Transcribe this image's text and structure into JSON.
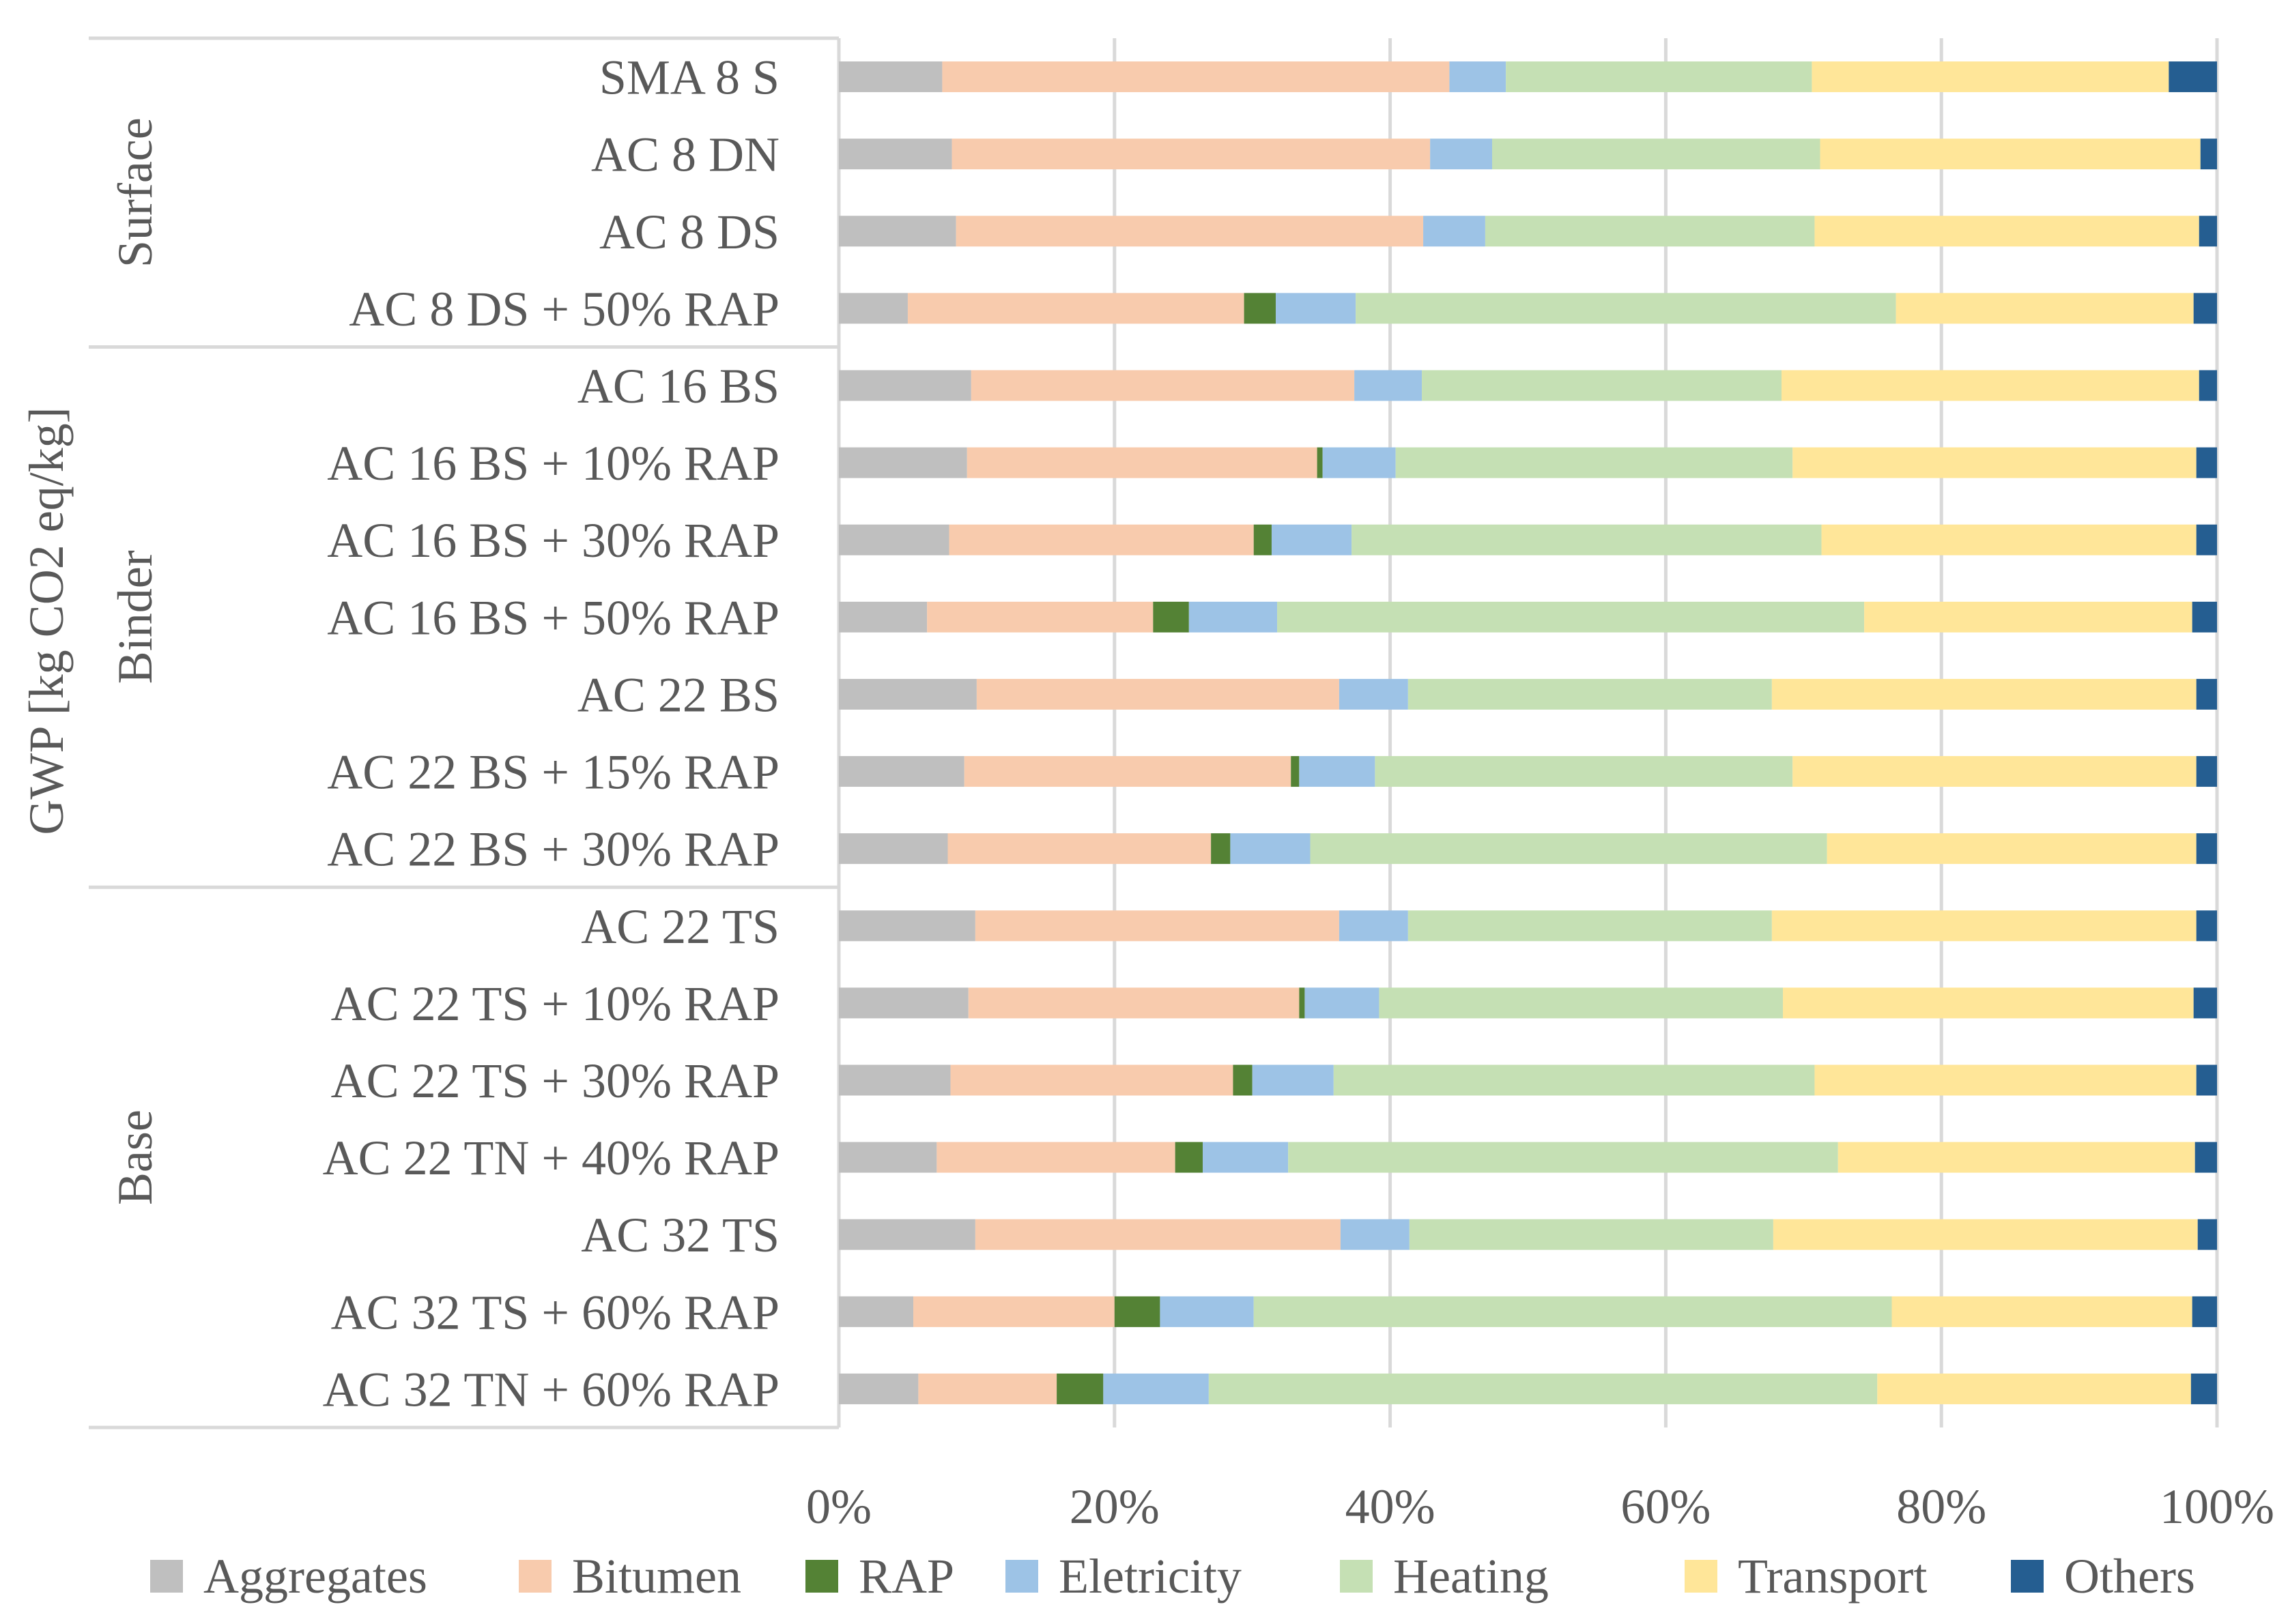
{
  "chart_data": {
    "type": "bar",
    "orientation": "horizontal",
    "stacked": true,
    "normalized": "percent",
    "title": "",
    "ylabel": "GWP [kg CO2 eq/kg]",
    "xlabel": "",
    "xlim": [
      0,
      100
    ],
    "x_ticks": [
      0,
      20,
      40,
      60,
      80,
      100
    ],
    "x_tick_labels": [
      "0%",
      "20%",
      "40%",
      "60%",
      "80%",
      "100%"
    ],
    "grid": true,
    "legend_position": "bottom",
    "categories": [
      "SMA 8 S",
      "AC 8 DN",
      "AC 8 DS",
      "AC 8 DS + 50% RAP",
      "AC 16 BS",
      "AC 16 BS + 10% RAP",
      "AC 16 BS + 30% RAP",
      "AC 16 BS + 50% RAP",
      "AC 22 BS",
      "AC 22 BS + 15% RAP",
      "AC 22 BS + 30% RAP",
      "AC 22 TS",
      "AC 22 TS + 10% RAP",
      "AC 22 TS + 30% RAP",
      "AC 22 TN + 40% RAP",
      "AC 32 TS",
      "AC 32 TS + 60% RAP",
      "AC 32 TN + 60% RAP"
    ],
    "groups": [
      {
        "name": "Surface",
        "start": 0,
        "end": 3
      },
      {
        "name": "Binder",
        "start": 4,
        "end": 10
      },
      {
        "name": "Base",
        "start": 11,
        "end": 17
      }
    ],
    "series": [
      {
        "name": "Aggregates",
        "color": "#BFBFBF",
        "values": [
          7.5,
          8.2,
          8.5,
          5.0,
          9.6,
          9.3,
          8.0,
          6.4,
          10.0,
          9.1,
          7.9,
          9.9,
          9.4,
          8.1,
          7.1,
          9.9,
          5.4,
          5.8
        ]
      },
      {
        "name": "Bitumen",
        "color": "#F8CBAD",
        "values": [
          36.8,
          34.7,
          33.9,
          24.4,
          27.8,
          25.4,
          22.1,
          16.4,
          26.3,
          23.7,
          19.1,
          26.4,
          24.0,
          20.5,
          17.3,
          26.5,
          14.6,
          10.1
        ]
      },
      {
        "name": "RAP",
        "color": "#548235",
        "values": [
          0,
          0,
          0,
          2.3,
          0,
          0.4,
          1.3,
          2.6,
          0,
          0.6,
          1.4,
          0,
          0.4,
          1.4,
          2.0,
          0,
          3.3,
          3.4
        ]
      },
      {
        "name": "Eletricity",
        "color": "#9DC3E6",
        "values": [
          4.1,
          4.5,
          4.5,
          5.8,
          4.9,
          5.3,
          5.8,
          6.4,
          5.0,
          5.5,
          5.8,
          5.0,
          5.4,
          5.9,
          6.2,
          5.0,
          6.8,
          7.7
        ]
      },
      {
        "name": "Heating",
        "color": "#C5E0B4",
        "values": [
          22.2,
          23.8,
          23.9,
          39.2,
          26.1,
          28.8,
          34.1,
          42.6,
          26.4,
          30.3,
          37.5,
          26.4,
          29.3,
          34.9,
          39.9,
          26.4,
          46.3,
          48.8
        ]
      },
      {
        "name": "Transport",
        "color": "#FFE699",
        "values": [
          25.9,
          27.6,
          27.9,
          21.6,
          30.3,
          29.3,
          27.2,
          23.8,
          30.8,
          29.3,
          26.8,
          30.8,
          29.8,
          27.7,
          25.9,
          30.8,
          21.8,
          22.9
        ]
      },
      {
        "name": "Others",
        "color": "#255E91",
        "values": [
          3.5,
          1.2,
          1.3,
          1.7,
          1.3,
          1.5,
          1.5,
          1.8,
          1.5,
          1.5,
          1.5,
          1.5,
          1.7,
          1.5,
          1.6,
          1.4,
          1.8,
          1.9
        ]
      }
    ]
  }
}
